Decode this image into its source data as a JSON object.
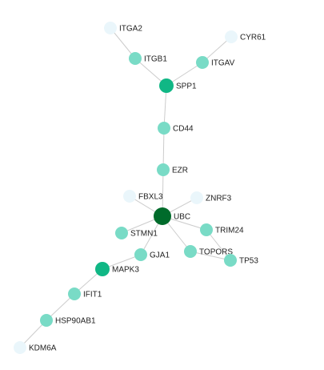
{
  "palette": {
    "hub": "#006b2b",
    "high": "#10b785",
    "mid": "#79dbc6",
    "low": "#eaf6fb",
    "edge": "#cccccc"
  },
  "nodes": [
    {
      "id": "ITGA2",
      "label": "ITGA2",
      "level": "low"
    },
    {
      "id": "CYR61",
      "label": "CYR61",
      "level": "low"
    },
    {
      "id": "ITGB1",
      "label": "ITGB1",
      "level": "mid"
    },
    {
      "id": "ITGAV",
      "label": "ITGAV",
      "level": "mid"
    },
    {
      "id": "SPP1",
      "label": "SPP1",
      "level": "high"
    },
    {
      "id": "CD44",
      "label": "CD44",
      "level": "mid"
    },
    {
      "id": "EZR",
      "label": "EZR",
      "level": "mid"
    },
    {
      "id": "FBXL3",
      "label": "FBXL3",
      "level": "low"
    },
    {
      "id": "ZNRF3",
      "label": "ZNRF3",
      "level": "low"
    },
    {
      "id": "UBC",
      "label": "UBC",
      "level": "hub"
    },
    {
      "id": "STMN1",
      "label": "STMN1",
      "level": "mid"
    },
    {
      "id": "TRIM24",
      "label": "TRIM24",
      "level": "mid"
    },
    {
      "id": "GJA1",
      "label": "GJA1",
      "level": "mid"
    },
    {
      "id": "TOPORS",
      "label": "TOPORS",
      "level": "mid"
    },
    {
      "id": "TP53",
      "label": "TP53",
      "level": "mid"
    },
    {
      "id": "MAPK3",
      "label": "MAPK3",
      "level": "high"
    },
    {
      "id": "IFIT1",
      "label": "IFIT1",
      "level": "mid"
    },
    {
      "id": "HSP90AB1",
      "label": "HSP90AB1",
      "level": "mid"
    },
    {
      "id": "KDM6A",
      "label": "KDM6A",
      "level": "low"
    }
  ],
  "edges": [
    [
      "ITGA2",
      "ITGB1"
    ],
    [
      "CYR61",
      "ITGAV"
    ],
    [
      "ITGB1",
      "SPP1"
    ],
    [
      "ITGAV",
      "SPP1"
    ],
    [
      "SPP1",
      "CD44"
    ],
    [
      "CD44",
      "EZR"
    ],
    [
      "EZR",
      "UBC"
    ],
    [
      "FBXL3",
      "UBC"
    ],
    [
      "ZNRF3",
      "UBC"
    ],
    [
      "UBC",
      "STMN1"
    ],
    [
      "UBC",
      "TRIM24"
    ],
    [
      "UBC",
      "GJA1"
    ],
    [
      "UBC",
      "TOPORS"
    ],
    [
      "TRIM24",
      "TP53"
    ],
    [
      "TOPORS",
      "TP53"
    ],
    [
      "GJA1",
      "MAPK3"
    ],
    [
      "MAPK3",
      "IFIT1"
    ],
    [
      "IFIT1",
      "HSP90AB1"
    ],
    [
      "HSP90AB1",
      "KDM6A"
    ]
  ]
}
